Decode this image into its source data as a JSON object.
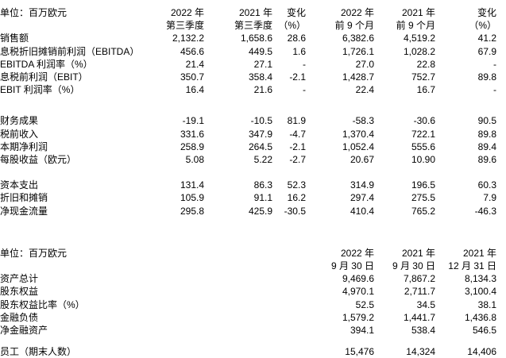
{
  "report": {
    "colors": {
      "background": "#ffffff",
      "text": "#000000"
    },
    "section_quarterly": {
      "unit_label": "单位：百万欧元",
      "columns": [
        {
          "line1": "2022 年",
          "line2": "第三季度"
        },
        {
          "line1": "2021 年",
          "line2": "第三季度"
        },
        {
          "line1": "变化",
          "line2": "（%）"
        },
        {
          "line1": "2022 年",
          "line2": "前 9 个月"
        },
        {
          "line1": "2021 年",
          "line2": "前 9 个月"
        },
        {
          "line1": "变化",
          "line2": "（%）"
        }
      ],
      "groups": [
        {
          "rows": [
            {
              "label": "销售额",
              "values": [
                "2,132.2",
                "1,658.6",
                "28.6",
                "6,382.6",
                "4,519.2",
                "41.2"
              ]
            },
            {
              "label": "息税折旧摊销前利润（EBITDA）",
              "values": [
                "456.6",
                "449.5",
                "1.6",
                "1,726.1",
                "1,028.2",
                "67.9"
              ]
            },
            {
              "label": "EBITDA 利润率（%）",
              "values": [
                "21.4",
                "27.1",
                "-",
                "27.0",
                "22.8",
                "-"
              ]
            },
            {
              "label": "息税前利润（EBIT）",
              "values": [
                "350.7",
                "358.4",
                "-2.1",
                "1,428.7",
                "752.7",
                "89.8"
              ]
            },
            {
              "label": "EBIT 利润率（%）",
              "values": [
                "16.4",
                "21.6",
                "-",
                "22.4",
                "16.7",
                "-"
              ]
            }
          ]
        },
        {
          "rows": [
            {
              "label": "财务成果",
              "values": [
                "-19.1",
                "-10.5",
                "81.9",
                "-58.3",
                "-30.6",
                "90.5"
              ]
            },
            {
              "label": "税前收入",
              "values": [
                "331.6",
                "347.9",
                "-4.7",
                "1,370.4",
                "722.1",
                "89.8"
              ]
            },
            {
              "label": "本期净利润",
              "values": [
                "258.9",
                "264.5",
                "-2.1",
                "1,052.4",
                "555.6",
                "89.4"
              ]
            },
            {
              "label": "每股收益（欧元）",
              "values": [
                "5.08",
                "5.22",
                "-2.7",
                "20.67",
                "10.90",
                "89.6"
              ]
            }
          ]
        },
        {
          "rows": [
            {
              "label": "资本支出",
              "values": [
                "131.4",
                "86.3",
                "52.3",
                "314.9",
                "196.5",
                "60.3"
              ]
            },
            {
              "label": "折旧和摊销",
              "values": [
                "105.9",
                "91.1",
                "16.2",
                "297.4",
                "275.5",
                "7.9"
              ]
            },
            {
              "label": "净现金流量",
              "values": [
                "295.8",
                "425.9",
                "-30.5",
                "410.4",
                "765.2",
                "-46.3"
              ]
            }
          ]
        }
      ]
    },
    "section_balance": {
      "unit_label": "单位：百万欧元",
      "columns": [
        {
          "line1": "2022 年",
          "line2": "9 月 30 日"
        },
        {
          "line1": "2021 年",
          "line2": "9 月 30 日"
        },
        {
          "line1": "2021 年",
          "line2": "12 月 31 日"
        }
      ],
      "groups": [
        {
          "rows": [
            {
              "label": "资产总计",
              "values": [
                "9,469.6",
                "7,867.2",
                "8,134.3"
              ]
            },
            {
              "label": "股东权益",
              "values": [
                "4,970.1",
                "2,711.7",
                "3,100.4"
              ]
            },
            {
              "label": "股东权益比率（%）",
              "values": [
                "52.5",
                "34.5",
                "38.1"
              ]
            },
            {
              "label": "金融负债",
              "values": [
                "1,579.2",
                "1,441.7",
                "1,436.8"
              ]
            },
            {
              "label": "净金融资产",
              "values": [
                "394.1",
                "538.4",
                "546.5"
              ]
            }
          ]
        },
        {
          "rows": [
            {
              "label": "员工（期末人数）",
              "values": [
                "15,476",
                "14,324",
                "14,406"
              ]
            }
          ]
        }
      ]
    }
  }
}
